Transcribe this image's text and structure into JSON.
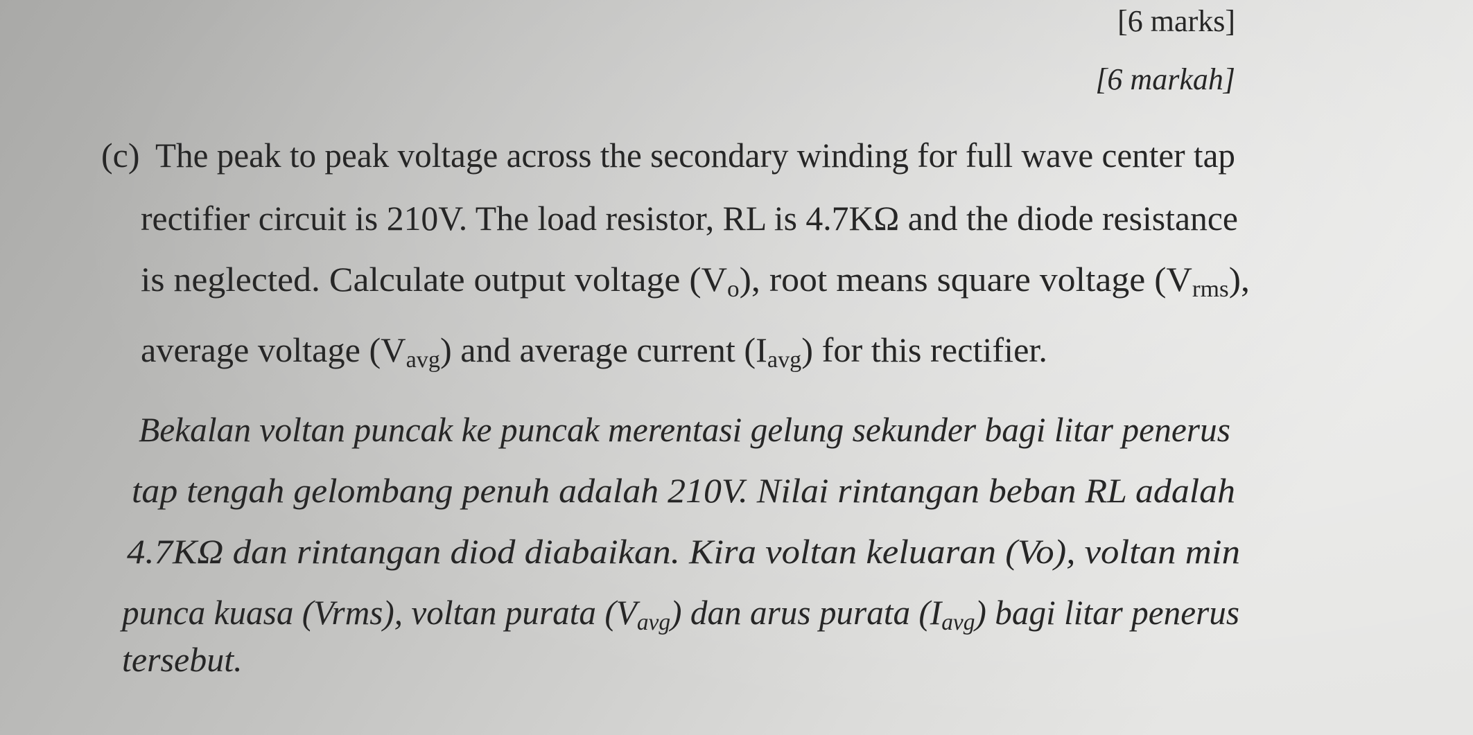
{
  "marks_en": "[6 marks]",
  "marks_ms": "[6 markah]",
  "question": {
    "label": "(c)",
    "english": {
      "lines": [
        [
          "The peak to peak voltage across the secondary winding for full wave center tap"
        ],
        [
          "rectifier circuit is 210V. The load resistor, RL is 4.7KΩ and the diode resistance"
        ],
        [
          "is neglected. Calculate output voltage (V",
          "o",
          "), root means square voltage (V",
          "rms",
          "),"
        ],
        [
          "average voltage (V",
          "avg",
          ") and average current (I",
          "avg",
          ") for this rectifier."
        ]
      ]
    },
    "malay": {
      "lines": [
        [
          "Bekalan voltan puncak ke puncak merentasi gelung sekunder bagi litar penerus"
        ],
        [
          "tap tengah gelombang penuh adalah 210V. Nilai rintangan beban RL adalah"
        ],
        [
          "4.7KΩ dan rintangan diod diabaikan. Kira voltan keluaran (Vo), voltan min"
        ],
        [
          "punca kuasa (Vrms), voltan purata (V",
          "avg",
          ") dan arus purata (I",
          "avg",
          ") bagi litar penerus"
        ],
        [
          "tersebut."
        ]
      ]
    }
  }
}
